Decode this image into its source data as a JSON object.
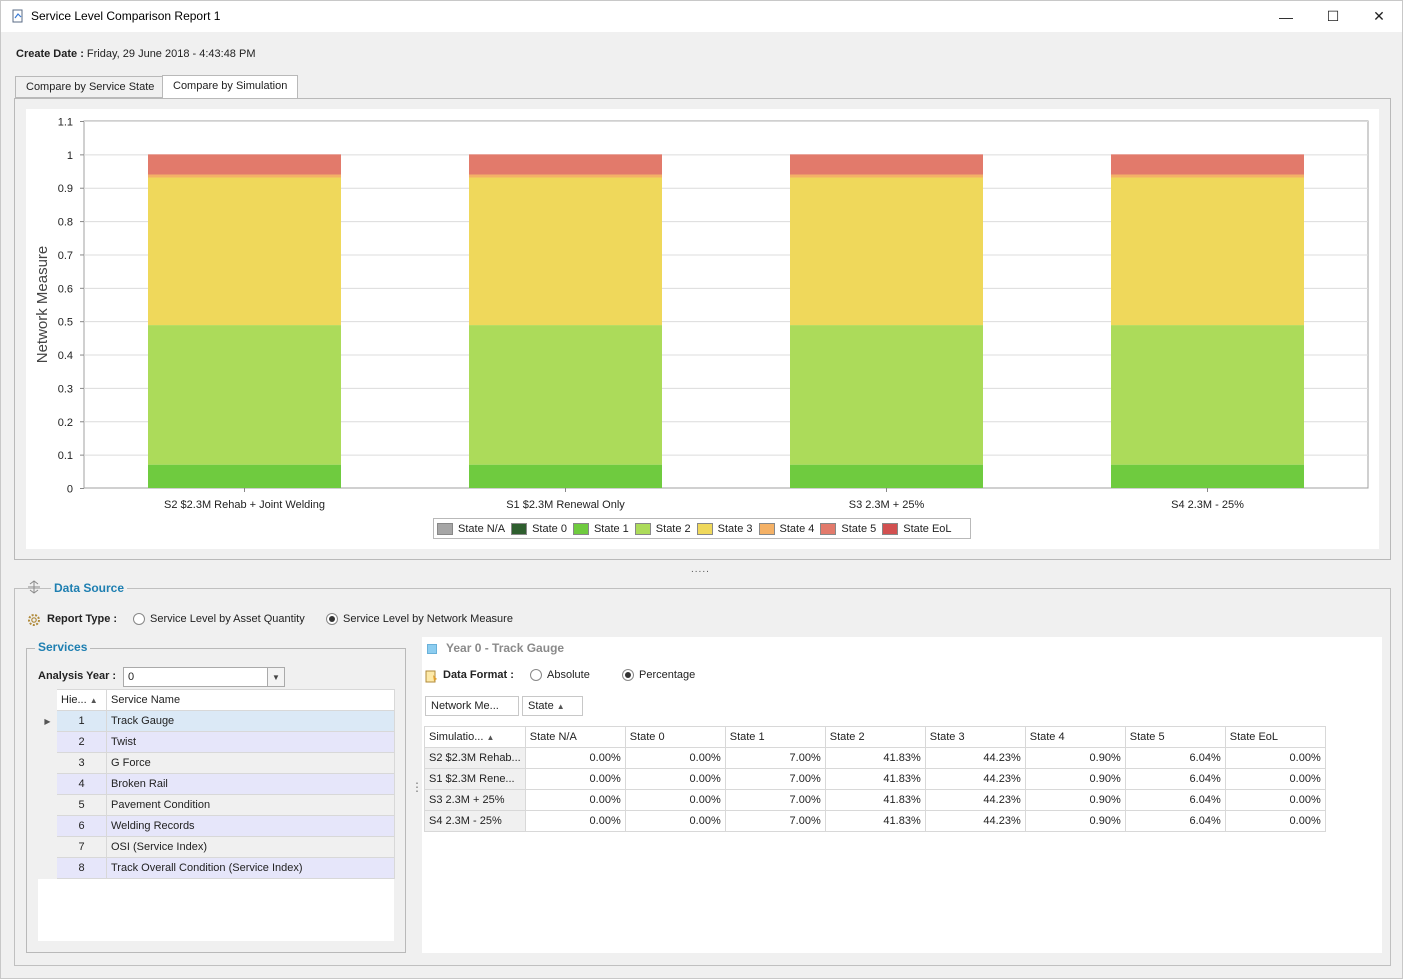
{
  "window": {
    "title": "Service Level Comparison Report 1",
    "minimize": "—",
    "maximize": "☐",
    "close": "✕"
  },
  "create_date": {
    "label": "Create Date :",
    "value": "Friday, 29 June 2018 - 4:43:48 PM"
  },
  "tabs": [
    {
      "label": "Compare by Service State"
    },
    {
      "label": "Compare by Simulation"
    }
  ],
  "legend": [
    {
      "label": "State N/A",
      "color": "#a6a6a6"
    },
    {
      "label": "State 0",
      "color": "#2e5e2e"
    },
    {
      "label": "State 1",
      "color": "#6fcb3f"
    },
    {
      "label": "State 2",
      "color": "#acdb5a"
    },
    {
      "label": "State 3",
      "color": "#efd85b"
    },
    {
      "label": "State 4",
      "color": "#f4b166"
    },
    {
      "label": "State 5",
      "color": "#e27a6b"
    },
    {
      "label": "State EoL",
      "color": "#d25050"
    }
  ],
  "chart_data": {
    "type": "bar",
    "stacked": true,
    "ylabel": "Network Measure",
    "xlabel": "",
    "ylim": [
      0,
      1.1
    ],
    "yticks": [
      "0",
      "0.1",
      "0.2",
      "0.3",
      "0.4",
      "0.5",
      "0.6",
      "0.7",
      "0.8",
      "0.9",
      "1",
      "1.1"
    ],
    "grid": true,
    "legend_position": "bottom",
    "categories": [
      "S2 $2.3M Rehab + Joint Welding",
      "S1 $2.3M Renewal Only",
      "S3 2.3M + 25%",
      "S4 2.3M - 25%"
    ],
    "series": [
      {
        "name": "State N/A",
        "values": [
          0,
          0,
          0,
          0
        ]
      },
      {
        "name": "State 0",
        "values": [
          0,
          0,
          0,
          0
        ]
      },
      {
        "name": "State 1",
        "values": [
          0.07,
          0.07,
          0.07,
          0.07
        ]
      },
      {
        "name": "State 2",
        "values": [
          0.4183,
          0.4183,
          0.4183,
          0.4183
        ]
      },
      {
        "name": "State 3",
        "values": [
          0.4423,
          0.4423,
          0.4423,
          0.4423
        ]
      },
      {
        "name": "State 4",
        "values": [
          0.009,
          0.009,
          0.009,
          0.009
        ]
      },
      {
        "name": "State 5",
        "values": [
          0.0604,
          0.0604,
          0.0604,
          0.0604
        ]
      },
      {
        "name": "State EoL",
        "values": [
          0,
          0,
          0,
          0
        ]
      }
    ]
  },
  "splitter": ".....",
  "data_source": {
    "title": "Data Source",
    "report_type_label": "Report Type :",
    "report_options": [
      {
        "label": "Service Level by Asset Quantity",
        "checked": false
      },
      {
        "label": "Service Level by Network Measure",
        "checked": true
      }
    ]
  },
  "services": {
    "title": "Services",
    "analysis_year_label": "Analysis Year :",
    "analysis_year_value": "0",
    "columns": [
      "Hie...",
      "Service Name"
    ],
    "rows": [
      {
        "id": "1",
        "name": "Track Gauge"
      },
      {
        "id": "2",
        "name": "Twist"
      },
      {
        "id": "3",
        "name": "G Force"
      },
      {
        "id": "4",
        "name": "Broken Rail"
      },
      {
        "id": "5",
        "name": "Pavement Condition"
      },
      {
        "id": "6",
        "name": "Welding Records"
      },
      {
        "id": "7",
        "name": "OSI (Service Index)"
      },
      {
        "id": "8",
        "name": "Track Overall Condition (Service Index)"
      }
    ]
  },
  "detail": {
    "title": "Year 0 - Track Gauge",
    "data_format_label": "Data Format :",
    "format_options": [
      {
        "label": "Absolute",
        "checked": false
      },
      {
        "label": "Percentage",
        "checked": true
      }
    ],
    "group_pills": [
      "Network Me...",
      "State"
    ],
    "columns": [
      "Simulatio...",
      "State N/A",
      "State 0",
      "State 1",
      "State 2",
      "State 3",
      "State 4",
      "State 5",
      "State EoL"
    ],
    "rows": [
      [
        "S2 $2.3M Rehab...",
        "0.00%",
        "0.00%",
        "7.00%",
        "41.83%",
        "44.23%",
        "0.90%",
        "6.04%",
        "0.00%"
      ],
      [
        "S1 $2.3M Rene...",
        "0.00%",
        "0.00%",
        "7.00%",
        "41.83%",
        "44.23%",
        "0.90%",
        "6.04%",
        "0.00%"
      ],
      [
        "S3 2.3M + 25%",
        "0.00%",
        "0.00%",
        "7.00%",
        "41.83%",
        "44.23%",
        "0.90%",
        "6.04%",
        "0.00%"
      ],
      [
        "S4 2.3M - 25%",
        "0.00%",
        "0.00%",
        "7.00%",
        "41.83%",
        "44.23%",
        "0.90%",
        "6.04%",
        "0.00%"
      ]
    ]
  }
}
